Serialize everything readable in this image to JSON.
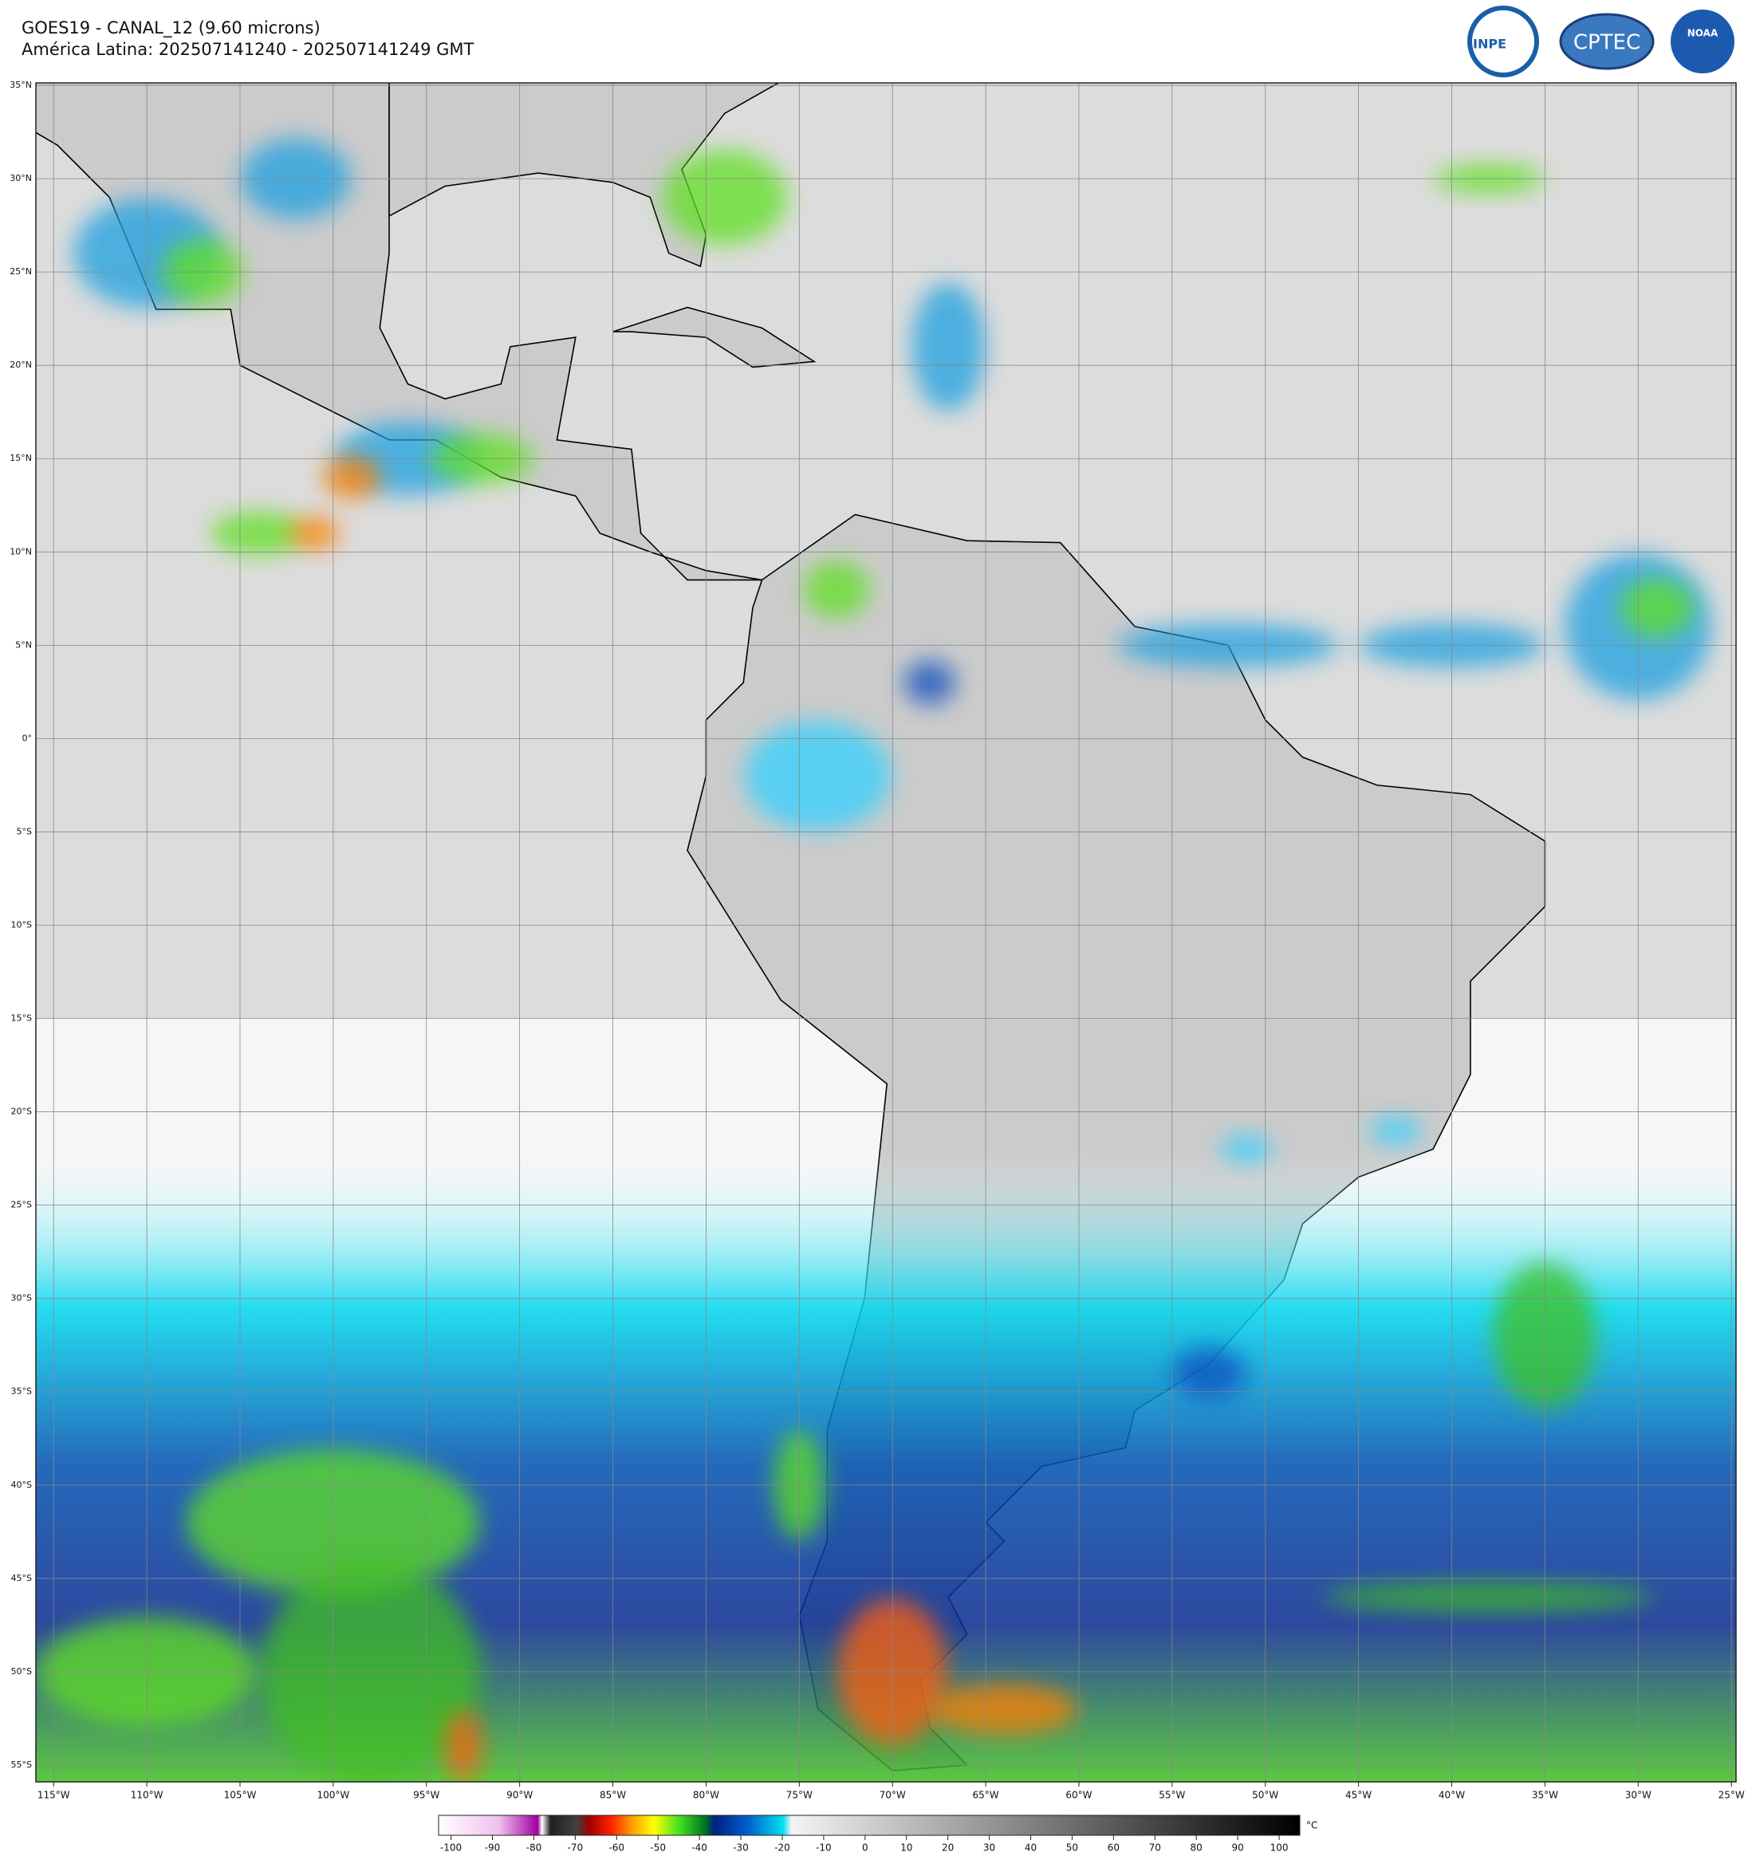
{
  "header": {
    "title": "GOES19 - CANAL_12 (9.60 microns)",
    "subtitle": "América Latina: 202507141240 - 202507141249 GMT"
  },
  "logos": [
    "INPE",
    "CPTEC",
    "NOAA"
  ],
  "map": {
    "lat_range": [
      -55.9,
      35.13
    ],
    "lon_range": [
      -115.95,
      -24.75
    ],
    "grid": true,
    "lat_ticks": [
      {
        "value": 35,
        "label": "35°N"
      },
      {
        "value": 30,
        "label": "30°N"
      },
      {
        "value": 25,
        "label": "25°N"
      },
      {
        "value": 20,
        "label": "20°N"
      },
      {
        "value": 15,
        "label": "15°N"
      },
      {
        "value": 10,
        "label": "10°N"
      },
      {
        "value": 5,
        "label": "5°N"
      },
      {
        "value": 0,
        "label": "0°"
      },
      {
        "value": -5,
        "label": "5°S"
      },
      {
        "value": -10,
        "label": "10°S"
      },
      {
        "value": -15,
        "label": "15°S"
      },
      {
        "value": -20,
        "label": "20°S"
      },
      {
        "value": -25,
        "label": "25°S"
      },
      {
        "value": -30,
        "label": "30°S"
      },
      {
        "value": -35,
        "label": "35°S"
      },
      {
        "value": -40,
        "label": "40°S"
      },
      {
        "value": -45,
        "label": "45°S"
      },
      {
        "value": -50,
        "label": "50°S"
      },
      {
        "value": -55,
        "label": "55°S"
      }
    ],
    "lon_ticks": [
      {
        "value": -115,
        "label": "115°W"
      },
      {
        "value": -110,
        "label": "110°W"
      },
      {
        "value": -105,
        "label": "105°W"
      },
      {
        "value": -100,
        "label": "100°W"
      },
      {
        "value": -95,
        "label": "95°W"
      },
      {
        "value": -90,
        "label": "90°W"
      },
      {
        "value": -85,
        "label": "85°W"
      },
      {
        "value": -80,
        "label": "80°W"
      },
      {
        "value": -75,
        "label": "75°W"
      },
      {
        "value": -70,
        "label": "70°W"
      },
      {
        "value": -65,
        "label": "65°W"
      },
      {
        "value": -60,
        "label": "60°W"
      },
      {
        "value": -55,
        "label": "55°W"
      },
      {
        "value": -50,
        "label": "50°W"
      },
      {
        "value": -45,
        "label": "45°W"
      },
      {
        "value": -40,
        "label": "40°W"
      },
      {
        "value": -35,
        "label": "35°W"
      },
      {
        "value": -30,
        "label": "30°W"
      },
      {
        "value": -25,
        "label": "25°W"
      }
    ]
  },
  "colorbar": {
    "range": [
      -103,
      105
    ],
    "ticks": [
      -100,
      -90,
      -80,
      -70,
      -60,
      -50,
      -40,
      -30,
      -20,
      -10,
      0,
      10,
      20,
      30,
      40,
      50,
      60,
      70,
      80,
      90,
      100
    ],
    "unit": "°C"
  }
}
